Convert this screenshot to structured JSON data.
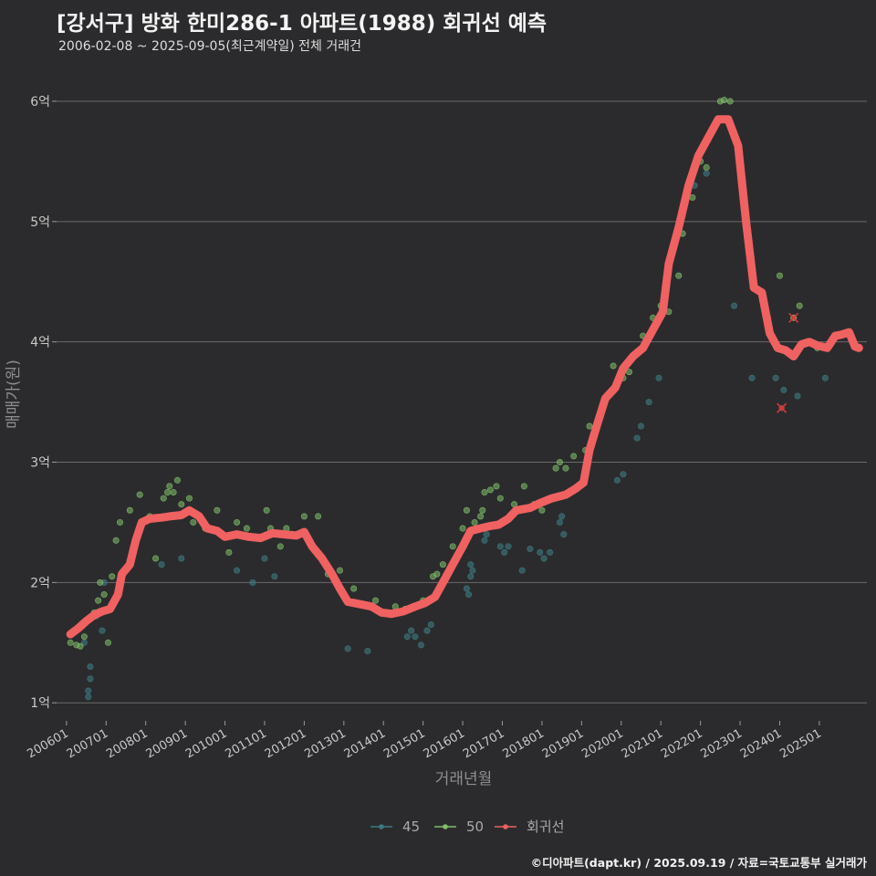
{
  "header": {
    "title": "[강서구] 방화 한미286-1 아파트(1988) 회귀선 예측",
    "subtitle": "2006-02-08 ~ 2025-09-05(최근계약일) 전체 거래건"
  },
  "caption": "©디아파트(dapt.kr) / 2025.09.19 / 자료=국토교통부 실거래가",
  "colors": {
    "s45": "#3d7a80",
    "s50": "#7fbf6a",
    "trend": "#f06161",
    "grid": "#6a6a6a",
    "background": "#2b2b2d"
  },
  "chart_data": {
    "type": "scatter",
    "xlabel": "거래년월",
    "ylabel": "매매가(원)",
    "x_range": [
      2005.75,
      2026.2
    ],
    "ylim": [
      0.85,
      6.25
    ],
    "y_ticks": [
      {
        "value": 1,
        "label": "1억"
      },
      {
        "value": 2,
        "label": "2억"
      },
      {
        "value": 3,
        "label": "3억"
      },
      {
        "value": 4,
        "label": "4억"
      },
      {
        "value": 5,
        "label": "5억"
      },
      {
        "value": 6,
        "label": "6억"
      }
    ],
    "x_ticks": [
      {
        "value": 2006.0,
        "label": "200601"
      },
      {
        "value": 2007.0,
        "label": "200701"
      },
      {
        "value": 2008.0,
        "label": "200801"
      },
      {
        "value": 2009.0,
        "label": "200901"
      },
      {
        "value": 2010.0,
        "label": "201001"
      },
      {
        "value": 2011.0,
        "label": "201101"
      },
      {
        "value": 2012.0,
        "label": "201201"
      },
      {
        "value": 2013.0,
        "label": "201301"
      },
      {
        "value": 2014.0,
        "label": "201401"
      },
      {
        "value": 2015.0,
        "label": "201501"
      },
      {
        "value": 2016.0,
        "label": "201601"
      },
      {
        "value": 2017.0,
        "label": "201701"
      },
      {
        "value": 2018.0,
        "label": "201801"
      },
      {
        "value": 2019.0,
        "label": "201901"
      },
      {
        "value": 2020.0,
        "label": "202001"
      },
      {
        "value": 2021.0,
        "label": "202101"
      },
      {
        "value": 2022.0,
        "label": "202201"
      },
      {
        "value": 2023.0,
        "label": "202301"
      },
      {
        "value": 2024.0,
        "label": "202401"
      },
      {
        "value": 2025.0,
        "label": "202501"
      }
    ],
    "legend": {
      "placement": "bottom",
      "items": [
        {
          "key": "s45",
          "label": "45"
        },
        {
          "key": "s50",
          "label": "50"
        },
        {
          "key": "trend",
          "label": "회귀선"
        }
      ]
    },
    "series": [
      {
        "name": "45",
        "points": [
          [
            2006.55,
            1.05
          ],
          [
            2006.55,
            1.1
          ],
          [
            2006.6,
            1.2
          ],
          [
            2006.6,
            1.3
          ],
          [
            2006.45,
            1.5
          ],
          [
            2006.75,
            1.72
          ],
          [
            2006.9,
            1.6
          ],
          [
            2006.95,
            2.0
          ],
          [
            2008.4,
            2.15
          ],
          [
            2008.9,
            2.2
          ],
          [
            2010.3,
            2.1
          ],
          [
            2010.7,
            2.0
          ],
          [
            2011.0,
            2.2
          ],
          [
            2011.25,
            2.05
          ],
          [
            2013.1,
            1.45
          ],
          [
            2013.6,
            1.43
          ],
          [
            2014.6,
            1.55
          ],
          [
            2014.7,
            1.6
          ],
          [
            2014.8,
            1.55
          ],
          [
            2014.95,
            1.48
          ],
          [
            2015.1,
            1.6
          ],
          [
            2015.2,
            1.65
          ],
          [
            2016.1,
            1.95
          ],
          [
            2016.15,
            1.9
          ],
          [
            2016.2,
            2.05
          ],
          [
            2016.2,
            2.15
          ],
          [
            2016.25,
            2.1
          ],
          [
            2016.55,
            2.35
          ],
          [
            2016.6,
            2.4
          ],
          [
            2016.95,
            2.3
          ],
          [
            2017.05,
            2.25
          ],
          [
            2017.15,
            2.3
          ],
          [
            2017.5,
            2.1
          ],
          [
            2017.7,
            2.28
          ],
          [
            2017.95,
            2.25
          ],
          [
            2018.05,
            2.2
          ],
          [
            2018.2,
            2.25
          ],
          [
            2018.45,
            2.5
          ],
          [
            2018.5,
            2.55
          ],
          [
            2018.55,
            2.4
          ],
          [
            2019.9,
            2.85
          ],
          [
            2020.05,
            2.9
          ],
          [
            2020.4,
            3.2
          ],
          [
            2020.5,
            3.3
          ],
          [
            2020.7,
            3.5
          ],
          [
            2020.95,
            3.7
          ],
          [
            2021.55,
            5.05
          ],
          [
            2021.85,
            5.3
          ],
          [
            2022.15,
            5.4
          ],
          [
            2022.85,
            4.3
          ],
          [
            2023.3,
            3.7
          ],
          [
            2023.9,
            3.7
          ],
          [
            2024.1,
            3.6
          ],
          [
            2024.45,
            3.55
          ],
          [
            2025.15,
            3.7
          ]
        ]
      },
      {
        "name": "50",
        "points": [
          [
            2006.1,
            1.5
          ],
          [
            2006.25,
            1.48
          ],
          [
            2006.35,
            1.47
          ],
          [
            2006.45,
            1.55
          ],
          [
            2006.6,
            1.7
          ],
          [
            2006.7,
            1.75
          ],
          [
            2006.8,
            1.85
          ],
          [
            2006.85,
            2.0
          ],
          [
            2006.95,
            1.9
          ],
          [
            2007.05,
            1.5
          ],
          [
            2007.15,
            2.05
          ],
          [
            2007.25,
            2.35
          ],
          [
            2007.35,
            2.5
          ],
          [
            2007.6,
            2.6
          ],
          [
            2007.85,
            2.73
          ],
          [
            2008.1,
            2.55
          ],
          [
            2008.25,
            2.2
          ],
          [
            2008.45,
            2.7
          ],
          [
            2008.55,
            2.75
          ],
          [
            2008.6,
            2.8
          ],
          [
            2008.7,
            2.75
          ],
          [
            2008.8,
            2.85
          ],
          [
            2008.9,
            2.65
          ],
          [
            2009.1,
            2.7
          ],
          [
            2009.2,
            2.5
          ],
          [
            2009.5,
            2.45
          ],
          [
            2009.8,
            2.6
          ],
          [
            2010.1,
            2.25
          ],
          [
            2010.3,
            2.5
          ],
          [
            2010.55,
            2.45
          ],
          [
            2011.05,
            2.6
          ],
          [
            2011.15,
            2.45
          ],
          [
            2011.4,
            2.3
          ],
          [
            2011.55,
            2.45
          ],
          [
            2012.0,
            2.55
          ],
          [
            2012.35,
            2.55
          ],
          [
            2012.6,
            2.07
          ],
          [
            2012.9,
            2.1
          ],
          [
            2013.25,
            1.95
          ],
          [
            2013.8,
            1.85
          ],
          [
            2014.3,
            1.8
          ],
          [
            2014.55,
            1.78
          ],
          [
            2015.0,
            1.85
          ],
          [
            2015.25,
            2.05
          ],
          [
            2015.35,
            2.07
          ],
          [
            2015.5,
            2.15
          ],
          [
            2015.75,
            2.3
          ],
          [
            2016.0,
            2.45
          ],
          [
            2016.1,
            2.6
          ],
          [
            2016.3,
            2.5
          ],
          [
            2016.45,
            2.55
          ],
          [
            2016.5,
            2.6
          ],
          [
            2016.55,
            2.75
          ],
          [
            2016.7,
            2.77
          ],
          [
            2016.85,
            2.8
          ],
          [
            2016.95,
            2.7
          ],
          [
            2017.3,
            2.65
          ],
          [
            2017.55,
            2.8
          ],
          [
            2017.8,
            2.65
          ],
          [
            2018.0,
            2.6
          ],
          [
            2018.35,
            2.95
          ],
          [
            2018.45,
            3.0
          ],
          [
            2018.6,
            2.95
          ],
          [
            2018.8,
            3.05
          ],
          [
            2019.1,
            3.1
          ],
          [
            2019.2,
            3.3
          ],
          [
            2019.8,
            3.8
          ],
          [
            2020.05,
            3.7
          ],
          [
            2020.2,
            3.75
          ],
          [
            2020.4,
            3.9
          ],
          [
            2020.55,
            4.05
          ],
          [
            2020.8,
            4.2
          ],
          [
            2021.0,
            4.3
          ],
          [
            2021.2,
            4.25
          ],
          [
            2021.45,
            4.55
          ],
          [
            2021.55,
            4.9
          ],
          [
            2021.8,
            5.2
          ],
          [
            2022.0,
            5.5
          ],
          [
            2022.15,
            5.45
          ],
          [
            2022.5,
            6.0
          ],
          [
            2022.6,
            6.01
          ],
          [
            2022.75,
            6.0
          ],
          [
            2023.7,
            4.2
          ],
          [
            2024.0,
            4.55
          ],
          [
            2024.35,
            4.2
          ],
          [
            2024.5,
            4.3
          ],
          [
            2024.95,
            3.95
          ]
        ]
      },
      {
        "name": "회귀선",
        "points": [
          [
            2006.1,
            1.57
          ],
          [
            2006.3,
            1.62
          ],
          [
            2006.5,
            1.68
          ],
          [
            2006.7,
            1.73
          ],
          [
            2006.9,
            1.76
          ],
          [
            2007.1,
            1.78
          ],
          [
            2007.3,
            1.9
          ],
          [
            2007.4,
            2.07
          ],
          [
            2007.6,
            2.15
          ],
          [
            2007.75,
            2.35
          ],
          [
            2007.9,
            2.5
          ],
          [
            2008.1,
            2.53
          ],
          [
            2008.4,
            2.54
          ],
          [
            2008.6,
            2.55
          ],
          [
            2008.9,
            2.56
          ],
          [
            2009.1,
            2.6
          ],
          [
            2009.35,
            2.55
          ],
          [
            2009.55,
            2.45
          ],
          [
            2009.8,
            2.43
          ],
          [
            2010.0,
            2.38
          ],
          [
            2010.3,
            2.4
          ],
          [
            2010.6,
            2.38
          ],
          [
            2010.9,
            2.37
          ],
          [
            2011.2,
            2.41
          ],
          [
            2011.5,
            2.4
          ],
          [
            2011.8,
            2.39
          ],
          [
            2012.0,
            2.42
          ],
          [
            2012.2,
            2.3
          ],
          [
            2012.45,
            2.2
          ],
          [
            2012.7,
            2.07
          ],
          [
            2012.9,
            1.95
          ],
          [
            2013.1,
            1.84
          ],
          [
            2013.4,
            1.82
          ],
          [
            2013.7,
            1.8
          ],
          [
            2013.95,
            1.75
          ],
          [
            2014.2,
            1.74
          ],
          [
            2014.5,
            1.76
          ],
          [
            2014.8,
            1.8
          ],
          [
            2015.05,
            1.83
          ],
          [
            2015.3,
            1.88
          ],
          [
            2015.5,
            2.0
          ],
          [
            2015.75,
            2.15
          ],
          [
            2016.0,
            2.3
          ],
          [
            2016.2,
            2.43
          ],
          [
            2016.45,
            2.45
          ],
          [
            2016.7,
            2.47
          ],
          [
            2016.9,
            2.48
          ],
          [
            2017.15,
            2.53
          ],
          [
            2017.35,
            2.6
          ],
          [
            2017.7,
            2.62
          ],
          [
            2017.95,
            2.66
          ],
          [
            2018.25,
            2.7
          ],
          [
            2018.6,
            2.73
          ],
          [
            2018.85,
            2.78
          ],
          [
            2019.05,
            2.83
          ],
          [
            2019.2,
            3.1
          ],
          [
            2019.4,
            3.32
          ],
          [
            2019.6,
            3.53
          ],
          [
            2019.85,
            3.62
          ],
          [
            2020.05,
            3.78
          ],
          [
            2020.3,
            3.88
          ],
          [
            2020.55,
            3.95
          ],
          [
            2020.8,
            4.1
          ],
          [
            2021.05,
            4.25
          ],
          [
            2021.2,
            4.65
          ],
          [
            2021.45,
            4.95
          ],
          [
            2021.7,
            5.3
          ],
          [
            2021.95,
            5.55
          ],
          [
            2022.2,
            5.7
          ],
          [
            2022.45,
            5.85
          ],
          [
            2022.7,
            5.85
          ],
          [
            2022.95,
            5.63
          ],
          [
            2023.15,
            5.0
          ],
          [
            2023.35,
            4.45
          ],
          [
            2023.55,
            4.41
          ],
          [
            2023.75,
            4.07
          ],
          [
            2023.95,
            3.95
          ],
          [
            2024.15,
            3.93
          ],
          [
            2024.35,
            3.88
          ],
          [
            2024.55,
            3.98
          ],
          [
            2024.75,
            4.0
          ],
          [
            2024.95,
            3.97
          ],
          [
            2025.2,
            3.95
          ],
          [
            2025.4,
            4.05
          ],
          [
            2025.55,
            4.06
          ],
          [
            2025.75,
            4.08
          ],
          [
            2025.9,
            3.96
          ],
          [
            2026.0,
            3.95
          ]
        ]
      }
    ],
    "excluded_points": [
      [
        2024.05,
        3.45
      ],
      [
        2024.35,
        4.2
      ]
    ]
  }
}
